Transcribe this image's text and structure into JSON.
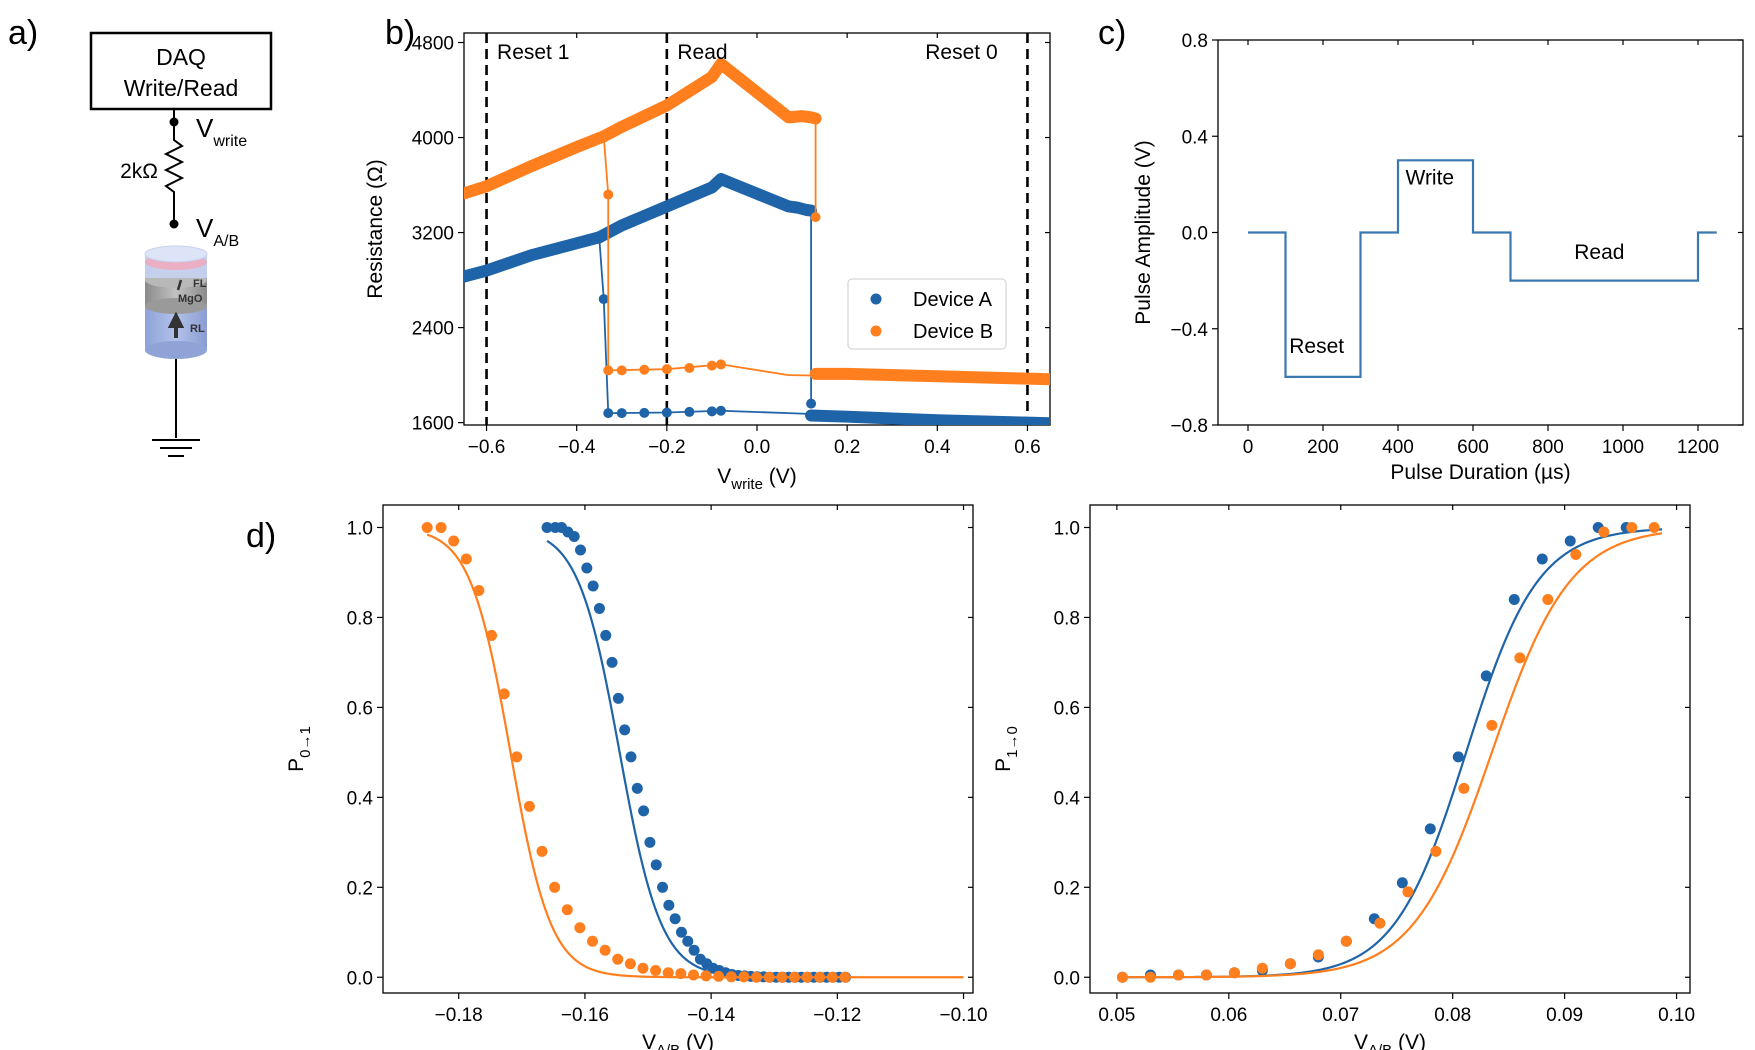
{
  "panel_labels": {
    "a": "a)",
    "b": "b)",
    "c": "c)",
    "d": "d)"
  },
  "colors": {
    "device_a": "#1f64a8",
    "device_b": "#ff7f1e",
    "step": "#3a78b0"
  },
  "circuit": {
    "box_line1": "DAQ",
    "box_line2": "Write/Read",
    "v_write": "V",
    "v_write_sub": "write",
    "resistor": "2kΩ",
    "v_ab": "V",
    "v_ab_sub": "A/B",
    "layers": [
      "FL",
      "MgO",
      "RL"
    ]
  },
  "chart_data": [
    {
      "id": "b",
      "type": "scatter",
      "xlabel": "V",
      "xlabel_sub": "write",
      "xlabel_unit": " (V)",
      "ylabel": "Resistance (Ω)",
      "xlim": [
        -0.65,
        0.65
      ],
      "ylim": [
        1580,
        4880
      ],
      "xticks": [
        -0.6,
        -0.4,
        -0.2,
        0.0,
        0.2,
        0.4,
        0.6
      ],
      "xtick_labels": [
        "−0.6",
        "−0.4",
        "−0.2",
        "0.0",
        "0.2",
        "0.4",
        "0.6"
      ],
      "yticks": [
        1600,
        2400,
        3200,
        4000,
        4800
      ],
      "ytick_labels": [
        "1600",
        "2400",
        "3200",
        "4000",
        "4800"
      ],
      "vlines": [
        -0.6,
        -0.2,
        0.6
      ],
      "annotations": [
        {
          "text": "Reset 1",
          "x": -0.59,
          "y": 4780
        },
        {
          "text": "Read",
          "x": -0.19,
          "y": 4780
        },
        {
          "text": "Reset 0",
          "x": 0.36,
          "y": 4780
        }
      ],
      "legend": [
        "Device A",
        "Device B"
      ],
      "legend_loc": "center right",
      "series": [
        {
          "name": "Device A",
          "segments": [
            {
              "x": [
                -0.65,
                -0.6,
                -0.5,
                -0.4,
                -0.35
              ],
              "y": [
                2830,
                2880,
                3010,
                3110,
                3160
              ]
            },
            {
              "x": [
                -0.35,
                -0.3,
                -0.2,
                -0.1,
                -0.08
              ],
              "y": [
                3160,
                3260,
                3420,
                3580,
                3650
              ]
            },
            {
              "x": [
                -0.08,
                0.07,
                0.09,
                0.11,
                0.12
              ],
              "y": [
                3650,
                3420,
                3410,
                3390,
                3385
              ]
            },
            {
              "x": [
                0.12,
                0.12
              ],
              "y": [
                3385,
                1760
              ]
            },
            {
              "x": [
                0.12,
                0.2,
                0.4,
                0.6,
                0.65
              ],
              "y": [
                1660,
                1650,
                1620,
                1600,
                1595
              ]
            },
            {
              "x": [
                0.65,
                0.07
              ],
              "y": [
                1595,
                1680
              ]
            },
            {
              "x": [
                0.07,
                -0.08,
                -0.2,
                -0.33
              ],
              "y": [
                1680,
                1700,
                1685,
                1680
              ]
            },
            {
              "x": [
                -0.33,
                -0.34,
                -0.35
              ],
              "y": [
                1680,
                2640,
                3160
              ]
            }
          ],
          "points": {
            "x": [
              -0.65,
              -0.6,
              -0.55,
              -0.5,
              -0.45,
              -0.4,
              -0.36,
              -0.3,
              -0.25,
              -0.2,
              -0.15,
              -0.1,
              -0.08,
              0.07,
              0.09,
              0.11,
              0.12,
              0.12,
              0.15,
              0.2,
              0.25,
              0.3,
              0.35,
              0.4,
              0.45,
              0.5,
              0.55,
              0.6,
              0.65,
              -0.33,
              -0.3,
              -0.25,
              -0.2,
              -0.15,
              -0.1,
              -0.08,
              -0.34
            ],
            "y": [
              2830,
              2880,
              2945,
              3010,
              3060,
              3110,
              3150,
              3260,
              3340,
              3420,
              3500,
              3580,
              3650,
              3420,
              3410,
              3390,
              3385,
              1760,
              1655,
              1650,
              1640,
              1635,
              1625,
              1620,
              1615,
              1610,
              1605,
              1600,
              1595,
              1680,
              1680,
              1682,
              1685,
              1690,
              1695,
              1700,
              2640
            ]
          }
        },
        {
          "name": "Device B",
          "segments": [
            {
              "x": [
                -0.65,
                -0.6,
                -0.5,
                -0.4,
                -0.34
              ],
              "y": [
                3530,
                3590,
                3760,
                3920,
                4010
              ]
            },
            {
              "x": [
                -0.34,
                -0.3,
                -0.2,
                -0.1,
                -0.08
              ],
              "y": [
                4010,
                4090,
                4270,
                4510,
                4620
              ]
            },
            {
              "x": [
                -0.08,
                0.07,
                0.1,
                0.12,
                0.13
              ],
              "y": [
                4620,
                4170,
                4180,
                4170,
                4160
              ]
            },
            {
              "x": [
                0.13,
                0.13
              ],
              "y": [
                4160,
                3330
              ]
            },
            {
              "x": [
                0.13,
                0.2,
                0.4,
                0.6,
                0.65
              ],
              "y": [
                2010,
                2010,
                1990,
                1970,
                1965
              ]
            },
            {
              "x": [
                0.65,
                0.07
              ],
              "y": [
                1965,
                2000
              ]
            },
            {
              "x": [
                0.07,
                -0.08,
                -0.2,
                -0.33
              ],
              "y": [
                2000,
                2090,
                2050,
                2040
              ]
            },
            {
              "x": [
                -0.33,
                -0.33,
                -0.34
              ],
              "y": [
                2040,
                3520,
                4010
              ]
            }
          ],
          "points": {
            "x": [
              -0.65,
              -0.6,
              -0.55,
              -0.5,
              -0.45,
              -0.4,
              -0.35,
              -0.3,
              -0.25,
              -0.2,
              -0.15,
              -0.1,
              -0.08,
              0.07,
              0.09,
              0.11,
              0.13,
              0.13,
              0.15,
              0.2,
              0.25,
              0.3,
              0.35,
              0.4,
              0.45,
              0.5,
              0.55,
              0.6,
              0.65,
              -0.33,
              -0.3,
              -0.25,
              -0.2,
              -0.15,
              -0.1,
              -0.08,
              -0.33
            ],
            "y": [
              3530,
              3590,
              3670,
              3760,
              3840,
              3920,
              4000,
              4090,
              4180,
              4270,
              4380,
              4510,
              4620,
              4170,
              4180,
              4170,
              4160,
              3330,
              2010,
              2010,
              2005,
              2000,
              1995,
              1990,
              1985,
              1980,
              1975,
              1970,
              1965,
              2040,
              2040,
              2045,
              2050,
              2060,
              2080,
              2090,
              3520
            ]
          }
        }
      ]
    },
    {
      "id": "c",
      "type": "line",
      "xlabel": "Pulse Duration (µs)",
      "ylabel": "Pulse Amplitude (V)",
      "xlim": [
        -80,
        1320
      ],
      "ylim": [
        -0.8,
        0.8
      ],
      "xticks": [
        0,
        200,
        400,
        600,
        800,
        1000,
        1200
      ],
      "xtick_labels": [
        "0",
        "200",
        "400",
        "600",
        "800",
        "1000",
        "1200"
      ],
      "yticks": [
        -0.8,
        -0.4,
        0.0,
        0.4,
        0.8
      ],
      "ytick_labels": [
        "−0.8",
        "−0.4",
        "0.0",
        "0.4",
        "0.8"
      ],
      "series": [
        {
          "name": "pulse",
          "x": [
            0,
            100,
            100,
            300,
            300,
            400,
            400,
            600,
            600,
            700,
            700,
            1200,
            1200,
            1250
          ],
          "y": [
            0,
            0,
            -0.6,
            -0.6,
            0,
            0,
            0.3,
            0.3,
            0,
            0,
            -0.2,
            -0.2,
            0,
            0
          ]
        }
      ],
      "annotations": [
        {
          "text": "Reset",
          "x": 110,
          "y": -0.5
        },
        {
          "text": "Write",
          "x": 420,
          "y": 0.2
        },
        {
          "text": "Read",
          "x": 870,
          "y": -0.11
        }
      ]
    },
    {
      "id": "d-left",
      "type": "scatter",
      "ylabel": "P",
      "ylabel_sub": "0→1",
      "xlabel": "V",
      "xlabel_sub": "A/B",
      "xlabel_unit": " (V)",
      "xlim": [
        -0.192,
        -0.0985
      ],
      "ylim": [
        -0.035,
        1.05
      ],
      "xticks": [
        -0.18,
        -0.16,
        -0.14,
        -0.12,
        -0.1
      ],
      "xtick_labels": [
        "−0.18",
        "−0.16",
        "−0.14",
        "−0.12",
        "−0.10"
      ],
      "yticks": [
        0.0,
        0.2,
        0.4,
        0.6,
        0.8,
        1.0
      ],
      "ytick_labels": [
        "0.0",
        "0.2",
        "0.4",
        "0.6",
        "0.8",
        "1.0"
      ],
      "series": [
        {
          "name": "Device A",
          "x": [
            -0.166,
            -0.1647,
            -0.1637,
            -0.1627,
            -0.1617,
            -0.1607,
            -0.1597,
            -0.1587,
            -0.1577,
            -0.1567,
            -0.1557,
            -0.1547,
            -0.1537,
            -0.1527,
            -0.1517,
            -0.1507,
            -0.1497,
            -0.1487,
            -0.1477,
            -0.1467,
            -0.1457,
            -0.1447,
            -0.1437,
            -0.1427,
            -0.1417,
            -0.1407,
            -0.1397,
            -0.1387,
            -0.1377,
            -0.1367,
            -0.1357,
            -0.1347,
            -0.1337,
            -0.1327,
            -0.1317,
            -0.1307,
            -0.1297,
            -0.1287,
            -0.1277,
            -0.1267,
            -0.1257,
            -0.1247,
            -0.1237,
            -0.1227,
            -0.1217,
            -0.1207,
            -0.1197,
            -0.1187
          ],
          "y": [
            1.0,
            1.0,
            1.0,
            0.99,
            0.98,
            0.95,
            0.91,
            0.87,
            0.82,
            0.76,
            0.7,
            0.62,
            0.55,
            0.49,
            0.42,
            0.37,
            0.3,
            0.25,
            0.2,
            0.16,
            0.13,
            0.1,
            0.08,
            0.06,
            0.04,
            0.03,
            0.02,
            0.015,
            0.01,
            0.006,
            0.004,
            0.003,
            0.002,
            0.001,
            0.001,
            0.0,
            0.0,
            0.0,
            0.0,
            0.0,
            0.0,
            0.0,
            0.0,
            0.0,
            0.0,
            0.0,
            0.0,
            0.0
          ],
          "fit": {
            "type": "sigmoid_desc",
            "x0": -0.1545,
            "k": 0.0033
          }
        },
        {
          "name": "Device B",
          "x": [
            -0.185,
            -0.1828,
            -0.1808,
            -0.1788,
            -0.1768,
            -0.1748,
            -0.1728,
            -0.1708,
            -0.1688,
            -0.1668,
            -0.1648,
            -0.1628,
            -0.1608,
            -0.1588,
            -0.1568,
            -0.1548,
            -0.1528,
            -0.1508,
            -0.1488,
            -0.1468,
            -0.1448,
            -0.1428,
            -0.1408,
            -0.1388,
            -0.1368,
            -0.1348,
            -0.1328,
            -0.1308,
            -0.1288,
            -0.1268,
            -0.1248,
            -0.1228,
            -0.1208,
            -0.1188
          ],
          "y": [
            1.0,
            1.0,
            0.97,
            0.93,
            0.86,
            0.76,
            0.63,
            0.49,
            0.38,
            0.28,
            0.2,
            0.15,
            0.11,
            0.08,
            0.06,
            0.04,
            0.03,
            0.02,
            0.015,
            0.01,
            0.008,
            0.005,
            0.003,
            0.002,
            0.001,
            0.001,
            0.0,
            0.0,
            0.0,
            0.0,
            0.0,
            0.0,
            0.0,
            0.0
          ],
          "fit": {
            "type": "sigmoid_desc",
            "x0": -0.1718,
            "k": 0.0032
          }
        }
      ]
    },
    {
      "id": "d-right",
      "type": "scatter",
      "ylabel": "P",
      "ylabel_sub": "1→0",
      "xlabel": "V",
      "xlabel_sub": "A/B",
      "xlabel_unit": " (V)",
      "xlim": [
        0.0476,
        0.1012
      ],
      "ylim": [
        -0.035,
        1.05
      ],
      "xticks": [
        0.05,
        0.06,
        0.07,
        0.08,
        0.09,
        0.1
      ],
      "xtick_labels": [
        "0.05",
        "0.06",
        "0.07",
        "0.08",
        "0.09",
        "0.10"
      ],
      "yticks": [
        0.0,
        0.2,
        0.4,
        0.6,
        0.8,
        1.0
      ],
      "ytick_labels": [
        "0.0",
        "0.2",
        "0.4",
        "0.6",
        "0.8",
        "1.0"
      ],
      "series": [
        {
          "name": "Device A",
          "x": [
            0.0505,
            0.053,
            0.0555,
            0.058,
            0.0605,
            0.063,
            0.0655,
            0.068,
            0.0705,
            0.073,
            0.0755,
            0.078,
            0.0805,
            0.083,
            0.0855,
            0.088,
            0.0905,
            0.093,
            0.0955
          ],
          "y": [
            0.0,
            0.005,
            0.005,
            0.005,
            0.01,
            0.015,
            0.03,
            0.045,
            0.08,
            0.13,
            0.21,
            0.33,
            0.49,
            0.67,
            0.84,
            0.93,
            0.97,
            1.0,
            1.0
          ],
          "fit": {
            "type": "sigmoid_asc",
            "x0": 0.0812,
            "k": 0.0032
          }
        },
        {
          "name": "Device B",
          "x": [
            0.0505,
            0.053,
            0.0555,
            0.058,
            0.0605,
            0.063,
            0.0655,
            0.068,
            0.0705,
            0.0735,
            0.076,
            0.0785,
            0.081,
            0.0835,
            0.086,
            0.0885,
            0.091,
            0.0935,
            0.096,
            0.098
          ],
          "y": [
            0.0,
            0.0,
            0.005,
            0.005,
            0.01,
            0.02,
            0.03,
            0.05,
            0.08,
            0.12,
            0.19,
            0.28,
            0.42,
            0.56,
            0.71,
            0.84,
            0.94,
            0.99,
            1.0,
            1.0
          ],
          "fit": {
            "type": "sigmoid_asc",
            "x0": 0.0835,
            "k": 0.0035
          }
        }
      ]
    }
  ]
}
